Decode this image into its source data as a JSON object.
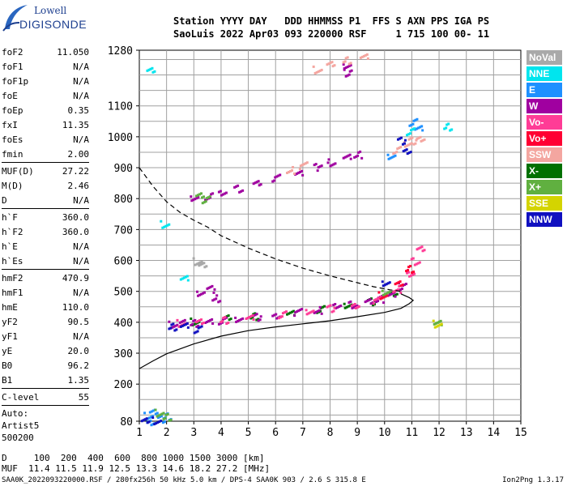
{
  "logo": {
    "line1": "Lowell",
    "line2": "DIGISONDE"
  },
  "header": {
    "line1": "Station YYYY DAY   DDD HHMMSS P1  FFS S AXN PPS IGA PS",
    "line2": "SaoLuis 2022 Apr03 093 220000 RSF     1 715 100 00- 11"
  },
  "params": [
    {
      "group": [
        {
          "name": "foF2",
          "value": "11.050"
        },
        {
          "name": "foF1",
          "value": "N/A"
        },
        {
          "name": "foF1p",
          "value": "N/A"
        },
        {
          "name": "foE",
          "value": "N/A"
        },
        {
          "name": "foEp",
          "value": "0.35"
        },
        {
          "name": "fxI",
          "value": "11.35"
        },
        {
          "name": "foEs",
          "value": "N/A"
        },
        {
          "name": "fmin",
          "value": "2.00"
        }
      ]
    },
    {
      "group": [
        {
          "name": "MUF(D)",
          "value": "27.22"
        },
        {
          "name": "M(D)",
          "value": "2.46"
        },
        {
          "name": "D",
          "value": "N/A"
        }
      ]
    },
    {
      "group": [
        {
          "name": "h`F",
          "value": "360.0"
        },
        {
          "name": "h`F2",
          "value": "360.0"
        },
        {
          "name": "h`E",
          "value": "N/A"
        },
        {
          "name": "h`Es",
          "value": "N/A"
        }
      ]
    },
    {
      "group": [
        {
          "name": "hmF2",
          "value": "470.9"
        },
        {
          "name": "hmF1",
          "value": "N/A"
        },
        {
          "name": "hmE",
          "value": "110.0"
        },
        {
          "name": "yF2",
          "value": "90.5"
        },
        {
          "name": "yF1",
          "value": "N/A"
        },
        {
          "name": "yE",
          "value": "20.0"
        },
        {
          "name": "B0",
          "value": "96.2"
        },
        {
          "name": "B1",
          "value": "1.35"
        }
      ]
    },
    {
      "group": [
        {
          "name": "C-level",
          "value": "55"
        }
      ]
    }
  ],
  "autoscale": {
    "line1": "Auto:",
    "line2": "Artist5",
    "line3": "500200"
  },
  "legend": [
    {
      "label": "NoVal",
      "color": "#a9a9a9"
    },
    {
      "label": "NNE",
      "color": "#00e5ee"
    },
    {
      "label": "E",
      "color": "#1e90ff"
    },
    {
      "label": "W",
      "color": "#a000a0"
    },
    {
      "label": "Vo-",
      "color": "#ff3c96"
    },
    {
      "label": "Vo+",
      "color": "#ff0033"
    },
    {
      "label": "SSW",
      "color": "#f4a6a0"
    },
    {
      "label": "X-",
      "color": "#007000"
    },
    {
      "label": "X+",
      "color": "#60b040"
    },
    {
      "label": "SSE",
      "color": "#d4d400"
    },
    {
      "label": "NNW",
      "color": "#1010c0"
    }
  ],
  "footer": {
    "line1": "D     100  200  400  600  800 1000 1500 3000 [km]",
    "line2": "MUF  11.4 11.5 11.9 12.5 13.3 14.6 18.2 27.2 [MHz]",
    "file": "SAA0K_2022093220000.RSF / 280fx256h 50 kHz 5.0 km / DPS-4 SAA0K 903 / 2.6 S 315.8 E",
    "version": "Ion2Png 1.3.17"
  },
  "chart_data": {
    "type": "scatter",
    "xlim": [
      1,
      15
    ],
    "ylim": [
      80,
      1280
    ],
    "x_ticks": [
      "1",
      "2",
      "3",
      "4",
      "5",
      "6",
      "7",
      "8",
      "9",
      "10",
      "11",
      "12",
      "13",
      "14",
      "15"
    ],
    "y_ticks": [
      "80",
      "200",
      "300",
      "400",
      "500",
      "600",
      "700",
      "800",
      "900",
      "1000",
      "1100",
      "1280"
    ],
    "grid": true,
    "series": [
      {
        "name": "X-",
        "color": "#007000",
        "points": [
          [
            3.0,
            405
          ],
          [
            4.2,
            415
          ],
          [
            5.2,
            422
          ],
          [
            6.5,
            432
          ],
          [
            7.6,
            445
          ],
          [
            8.6,
            458
          ],
          [
            9.5,
            470
          ],
          [
            10.3,
            500
          ]
        ]
      },
      {
        "name": "W",
        "color": "#a000a0",
        "points": [
          [
            2.2,
            395
          ],
          [
            2.6,
            400
          ],
          [
            3.0,
            400
          ],
          [
            3.5,
            405
          ],
          [
            4.0,
            408
          ],
          [
            4.6,
            413
          ],
          [
            5.3,
            420
          ],
          [
            6.0,
            427
          ],
          [
            6.8,
            436
          ],
          [
            7.5,
            442
          ],
          [
            8.2,
            452
          ],
          [
            8.8,
            460
          ],
          [
            9.4,
            470
          ],
          [
            9.8,
            478
          ],
          [
            10.2,
            495
          ],
          [
            10.6,
            520
          ],
          [
            3.2,
            500
          ],
          [
            3.6,
            510
          ],
          [
            3.8,
            480
          ],
          [
            3.0,
            800
          ],
          [
            3.5,
            810
          ],
          [
            4.0,
            820
          ],
          [
            4.6,
            835
          ],
          [
            5.3,
            855
          ],
          [
            6.0,
            870
          ],
          [
            6.8,
            890
          ],
          [
            7.5,
            905
          ],
          [
            8.0,
            920
          ],
          [
            8.6,
            935
          ],
          [
            9.0,
            945
          ],
          [
            8.6,
            1230
          ],
          [
            8.6,
            1210
          ]
        ]
      },
      {
        "name": "Vo-",
        "color": "#ff3c96",
        "points": [
          [
            2.5,
            400
          ],
          [
            3.2,
            402
          ],
          [
            4.1,
            410
          ],
          [
            5.0,
            418
          ],
          [
            6.2,
            428
          ],
          [
            7.2,
            438
          ],
          [
            8.0,
            448
          ],
          [
            8.9,
            460
          ],
          [
            9.7,
            475
          ],
          [
            10.4,
            510
          ],
          [
            10.9,
            555
          ],
          [
            11.1,
            600
          ],
          [
            11.3,
            640
          ]
        ]
      },
      {
        "name": "Vo+",
        "color": "#ff0033",
        "points": [
          [
            9.9,
            490
          ],
          [
            10.5,
            525
          ],
          [
            10.9,
            575
          ]
        ]
      },
      {
        "name": "SSW",
        "color": "#f4a6a0",
        "points": [
          [
            7.5,
            1220
          ],
          [
            8.0,
            1235
          ],
          [
            8.6,
            1250
          ],
          [
            9.2,
            1262
          ],
          [
            10.4,
            960
          ],
          [
            10.8,
            980
          ],
          [
            11.0,
            990
          ],
          [
            11.3,
            1000
          ],
          [
            7.0,
            910
          ],
          [
            6.5,
            895
          ]
        ]
      },
      {
        "name": "E",
        "color": "#1e90ff",
        "points": [
          [
            1.3,
            100
          ],
          [
            1.5,
            110
          ],
          [
            2.0,
            98
          ],
          [
            11.2,
            1030
          ],
          [
            11.0,
            1050
          ],
          [
            10.2,
            940
          ],
          [
            1.8,
            90
          ],
          [
            1.4,
            82
          ]
        ]
      },
      {
        "name": "NNE",
        "color": "#00e5ee",
        "points": [
          [
            1.9,
            720
          ],
          [
            1.4,
            1215
          ],
          [
            12.3,
            1035
          ],
          [
            2.6,
            545
          ],
          [
            10.9,
            1020
          ]
        ]
      },
      {
        "name": "NNW",
        "color": "#1010c0",
        "points": [
          [
            1.6,
            85
          ],
          [
            1.2,
            82
          ],
          [
            2.2,
            388
          ],
          [
            2.6,
            392
          ],
          [
            3.1,
            380
          ],
          [
            10.0,
            530
          ],
          [
            10.6,
            990
          ],
          [
            10.8,
            960
          ]
        ]
      },
      {
        "name": "X+",
        "color": "#60b040",
        "points": [
          [
            1.7,
            110
          ],
          [
            3.2,
            810
          ],
          [
            2.0,
            96
          ],
          [
            11.9,
            400
          ],
          [
            3.4,
            800
          ],
          [
            10.0,
            500
          ]
        ]
      },
      {
        "name": "SSE",
        "color": "#d4d400",
        "points": [
          [
            11.9,
            398
          ]
        ]
      },
      {
        "name": "NoVal",
        "color": "#a9a9a9",
        "points": [
          [
            3.1,
            600
          ],
          [
            3.3,
            585
          ]
        ]
      }
    ],
    "profile_curve": [
      [
        1.0,
        250
      ],
      [
        1.5,
        275
      ],
      [
        2.0,
        298
      ],
      [
        3.0,
        330
      ],
      [
        4.0,
        355
      ],
      [
        5.0,
        373
      ],
      [
        6.0,
        385
      ],
      [
        7.0,
        395
      ],
      [
        8.0,
        405
      ],
      [
        9.0,
        418
      ],
      [
        10.0,
        432
      ],
      [
        10.6,
        445
      ],
      [
        10.9,
        460
      ],
      [
        11.05,
        470.9
      ],
      [
        10.9,
        480
      ],
      [
        10.6,
        492
      ]
    ],
    "muf_curve": [
      [
        1.0,
        900
      ],
      [
        1.5,
        840
      ],
      [
        2.0,
        790
      ],
      [
        2.5,
        755
      ],
      [
        3.0,
        730
      ],
      [
        3.5,
        708
      ],
      [
        4.0,
        680
      ],
      [
        5.0,
        640
      ],
      [
        6.0,
        605
      ],
      [
        7.0,
        575
      ],
      [
        8.0,
        550
      ],
      [
        9.0,
        528
      ],
      [
        9.6,
        515
      ],
      [
        10.2,
        505
      ],
      [
        10.6,
        500
      ]
    ]
  }
}
